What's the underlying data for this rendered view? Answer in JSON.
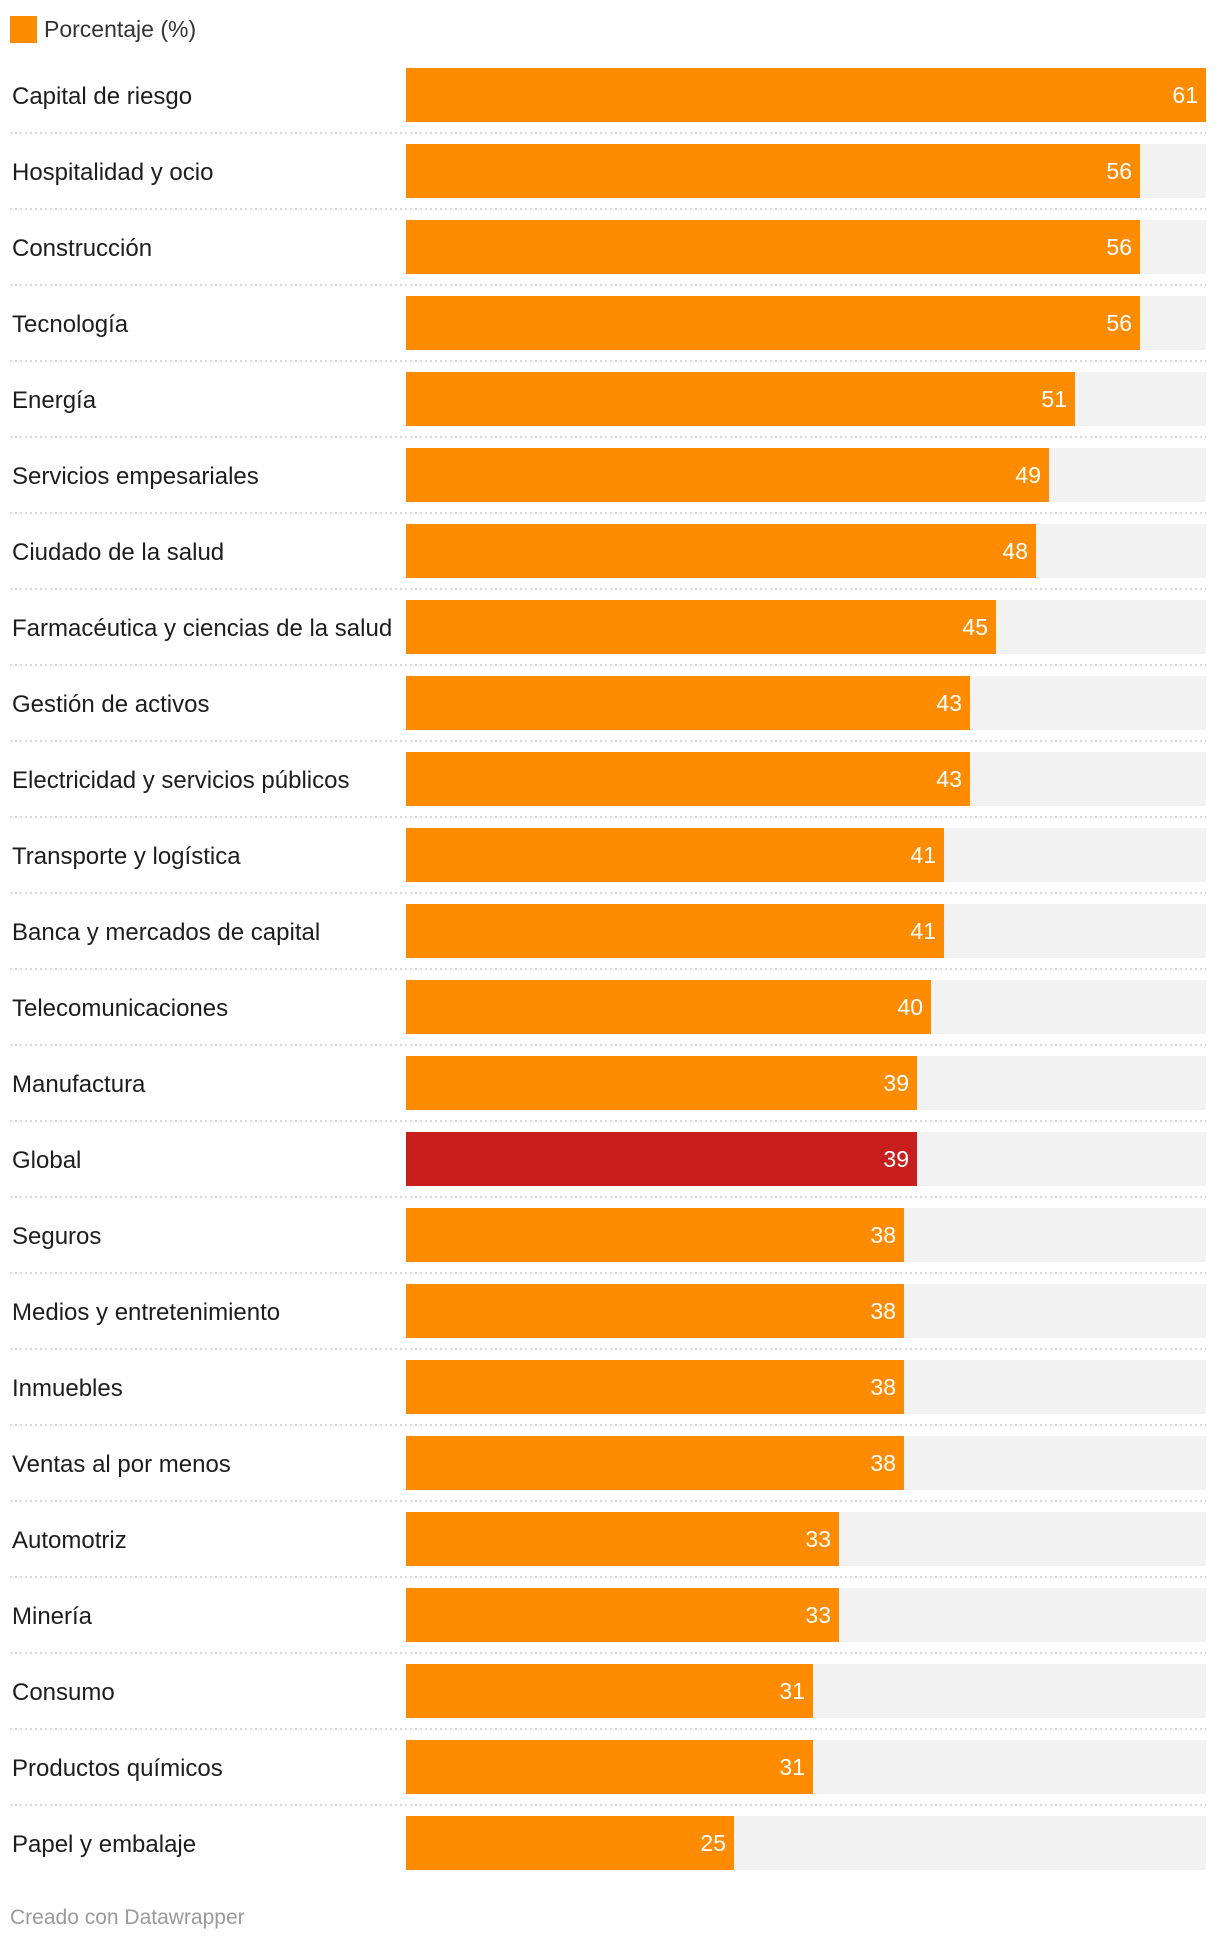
{
  "chart_data": {
    "type": "bar",
    "orientation": "horizontal",
    "legend": {
      "label": "Porcentaje (%)",
      "placement": "top-left"
    },
    "xlim": [
      0,
      61
    ],
    "categories": [
      "Capital de riesgo",
      "Hospitalidad y ocio",
      "Construcción",
      "Tecnología",
      "Energía",
      "Servicios empesariales",
      "Ciudado de la salud",
      "Farmacéutica y ciencias de la salud",
      "Gestión de activos",
      "Electricidad y servicios públicos",
      "Transporte y logística",
      "Banca y mercados de capital",
      "Telecomunicaciones",
      "Manufactura",
      "Global",
      "Seguros",
      "Medios y entretenimiento",
      "Inmuebles",
      "Ventas al por menos",
      "Automotriz",
      "Minería",
      "Consumo",
      "Productos químicos",
      "Papel y embalaje"
    ],
    "series": [
      {
        "name": "Porcentaje (%)",
        "values": [
          61,
          56,
          56,
          56,
          51,
          49,
          48,
          45,
          43,
          43,
          41,
          41,
          40,
          39,
          39,
          38,
          38,
          38,
          38,
          33,
          33,
          31,
          31,
          25
        ]
      }
    ],
    "highlight": {
      "category": "Global",
      "color": "#c81e1e"
    },
    "colors": {
      "bar": "#ff8c00",
      "track": "#f2f2f2",
      "separator": "#cccccc",
      "value_text": "#ffffff"
    }
  },
  "footer": {
    "credit": "Creado con Datawrapper"
  }
}
